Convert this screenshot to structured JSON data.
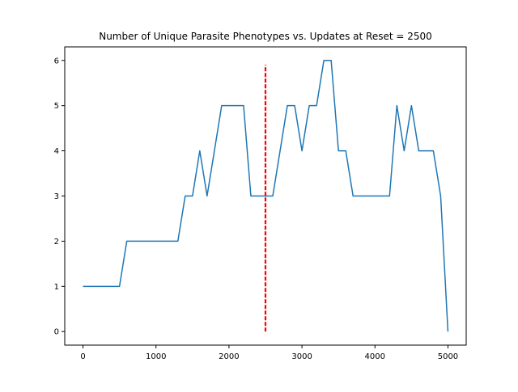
{
  "chart_data": {
    "type": "line",
    "title": "Number of Unique Parasite Phenotypes vs. Updates at Reset = 2500",
    "xlabel": "",
    "ylabel": "",
    "xlim": [
      -250,
      5250
    ],
    "ylim": [
      -0.3,
      6.3
    ],
    "xticks": [
      0,
      1000,
      2000,
      3000,
      4000,
      5000
    ],
    "yticks": [
      0,
      1,
      2,
      3,
      4,
      5,
      6
    ],
    "grid": false,
    "series": [
      {
        "color": "#1f77b4",
        "x": [
          0,
          100,
          200,
          300,
          400,
          500,
          600,
          700,
          800,
          900,
          1000,
          1100,
          1200,
          1300,
          1400,
          1500,
          1600,
          1700,
          1800,
          1900,
          2000,
          2100,
          2200,
          2300,
          2400,
          2500,
          2600,
          2700,
          2800,
          2900,
          3000,
          3100,
          3200,
          3300,
          3400,
          3500,
          3600,
          3700,
          3800,
          3900,
          4000,
          4100,
          4200,
          4300,
          4400,
          4500,
          4600,
          4700,
          4800,
          4900,
          5000
        ],
        "y": [
          1,
          1,
          1,
          1,
          1,
          1,
          2,
          2,
          2,
          2,
          2,
          2,
          2,
          2,
          3,
          3,
          4,
          3,
          4,
          5,
          5,
          5,
          5,
          3,
          3,
          3,
          3,
          4,
          5,
          5,
          4,
          5,
          5,
          6,
          6,
          4,
          4,
          3,
          3,
          3,
          3,
          3,
          3,
          5,
          4,
          5,
          4,
          4,
          4,
          3,
          0
        ]
      }
    ],
    "reset_line": {
      "x": 2500,
      "y_from": 0,
      "y_to": 5.9,
      "color": "#ff0000",
      "style": "dashed"
    }
  }
}
